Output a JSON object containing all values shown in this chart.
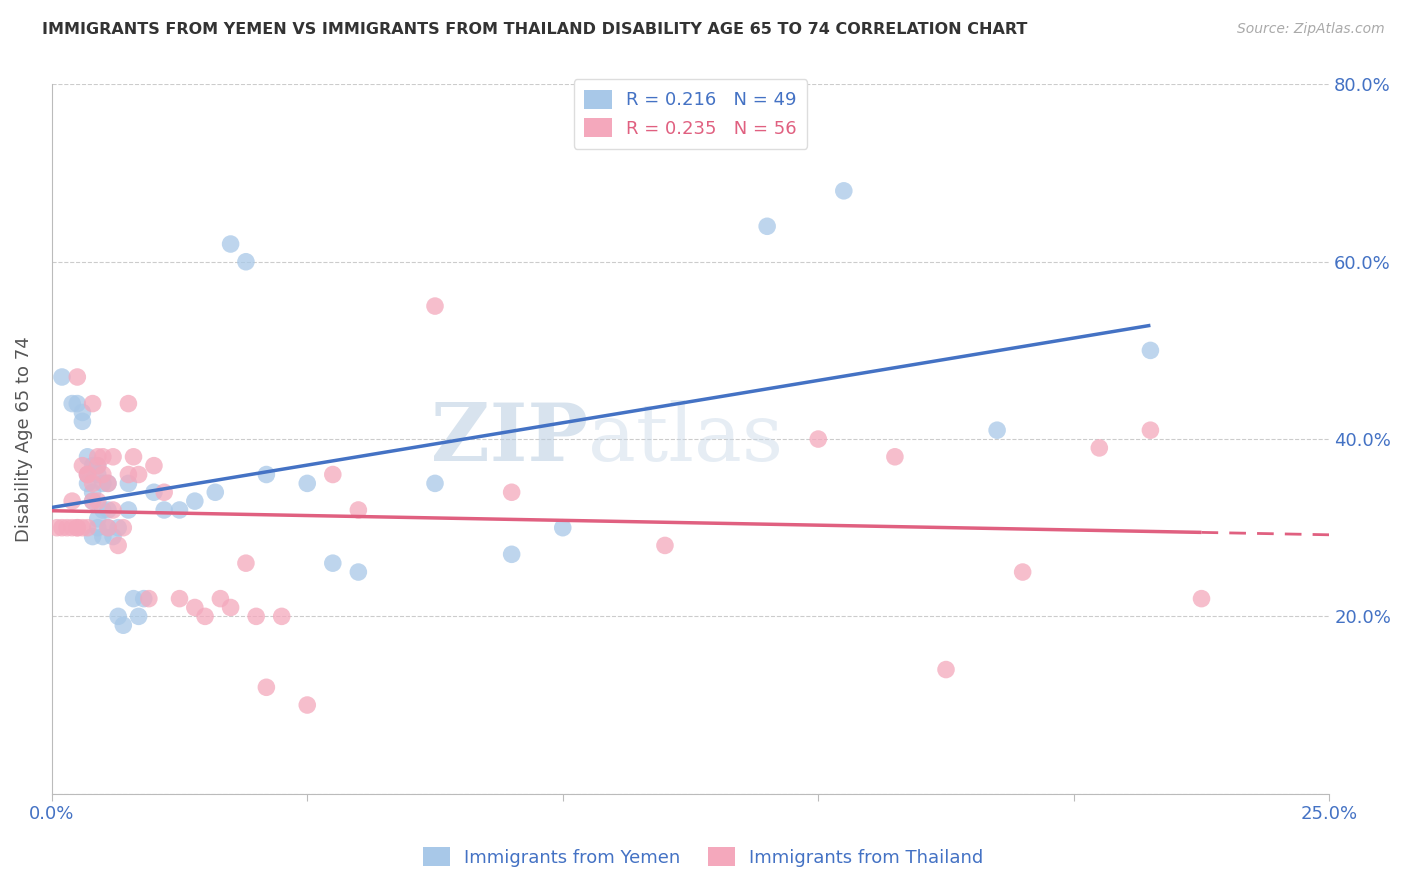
{
  "title": "IMMIGRANTS FROM YEMEN VS IMMIGRANTS FROM THAILAND DISABILITY AGE 65 TO 74 CORRELATION CHART",
  "source": "Source: ZipAtlas.com",
  "ylabel": "Disability Age 65 to 74",
  "xlim": [
    0.0,
    0.25
  ],
  "ylim": [
    0.0,
    0.8
  ],
  "xticks": [
    0.0,
    0.05,
    0.1,
    0.15,
    0.2,
    0.25
  ],
  "yticks": [
    0.0,
    0.2,
    0.4,
    0.6,
    0.8
  ],
  "right_ytick_labels": [
    "",
    "20.0%",
    "40.0%",
    "60.0%",
    "80.0%"
  ],
  "xtick_labels": [
    "0.0%",
    "",
    "",
    "",
    "",
    "25.0%"
  ],
  "yemen_R": 0.216,
  "yemen_N": 49,
  "thailand_R": 0.235,
  "thailand_N": 56,
  "yemen_color": "#a8c8e8",
  "thailand_color": "#f4a8bc",
  "yemen_line_color": "#4472c4",
  "thailand_line_color": "#e06080",
  "watermark": "ZIPatlas",
  "yemen_scatter_x": [
    0.002,
    0.004,
    0.005,
    0.006,
    0.006,
    0.007,
    0.007,
    0.007,
    0.008,
    0.008,
    0.008,
    0.008,
    0.009,
    0.009,
    0.009,
    0.009,
    0.01,
    0.01,
    0.01,
    0.011,
    0.011,
    0.011,
    0.012,
    0.013,
    0.013,
    0.014,
    0.015,
    0.015,
    0.016,
    0.017,
    0.018,
    0.02,
    0.022,
    0.025,
    0.028,
    0.032,
    0.035,
    0.038,
    0.042,
    0.05,
    0.055,
    0.06,
    0.075,
    0.09,
    0.1,
    0.14,
    0.155,
    0.185,
    0.215
  ],
  "yemen_scatter_y": [
    0.47,
    0.44,
    0.44,
    0.43,
    0.42,
    0.38,
    0.36,
    0.35,
    0.37,
    0.34,
    0.33,
    0.29,
    0.37,
    0.36,
    0.31,
    0.3,
    0.35,
    0.32,
    0.29,
    0.35,
    0.32,
    0.3,
    0.29,
    0.3,
    0.2,
    0.19,
    0.35,
    0.32,
    0.22,
    0.2,
    0.22,
    0.34,
    0.32,
    0.32,
    0.33,
    0.34,
    0.62,
    0.6,
    0.36,
    0.35,
    0.26,
    0.25,
    0.35,
    0.27,
    0.3,
    0.64,
    0.68,
    0.41,
    0.5
  ],
  "thailand_scatter_x": [
    0.001,
    0.002,
    0.003,
    0.004,
    0.004,
    0.005,
    0.005,
    0.005,
    0.006,
    0.006,
    0.007,
    0.007,
    0.007,
    0.008,
    0.008,
    0.008,
    0.009,
    0.009,
    0.009,
    0.01,
    0.01,
    0.011,
    0.011,
    0.012,
    0.012,
    0.013,
    0.014,
    0.015,
    0.015,
    0.016,
    0.017,
    0.019,
    0.02,
    0.022,
    0.025,
    0.028,
    0.03,
    0.033,
    0.035,
    0.038,
    0.04,
    0.042,
    0.045,
    0.05,
    0.055,
    0.06,
    0.075,
    0.09,
    0.12,
    0.15,
    0.165,
    0.175,
    0.19,
    0.205,
    0.215,
    0.225
  ],
  "thailand_scatter_y": [
    0.3,
    0.3,
    0.3,
    0.3,
    0.33,
    0.3,
    0.47,
    0.3,
    0.3,
    0.37,
    0.3,
    0.36,
    0.36,
    0.35,
    0.33,
    0.44,
    0.37,
    0.33,
    0.38,
    0.36,
    0.38,
    0.35,
    0.3,
    0.32,
    0.38,
    0.28,
    0.3,
    0.36,
    0.44,
    0.38,
    0.36,
    0.22,
    0.37,
    0.34,
    0.22,
    0.21,
    0.2,
    0.22,
    0.21,
    0.26,
    0.2,
    0.12,
    0.2,
    0.1,
    0.36,
    0.32,
    0.55,
    0.34,
    0.28,
    0.4,
    0.38,
    0.14,
    0.25,
    0.39,
    0.41,
    0.22
  ]
}
